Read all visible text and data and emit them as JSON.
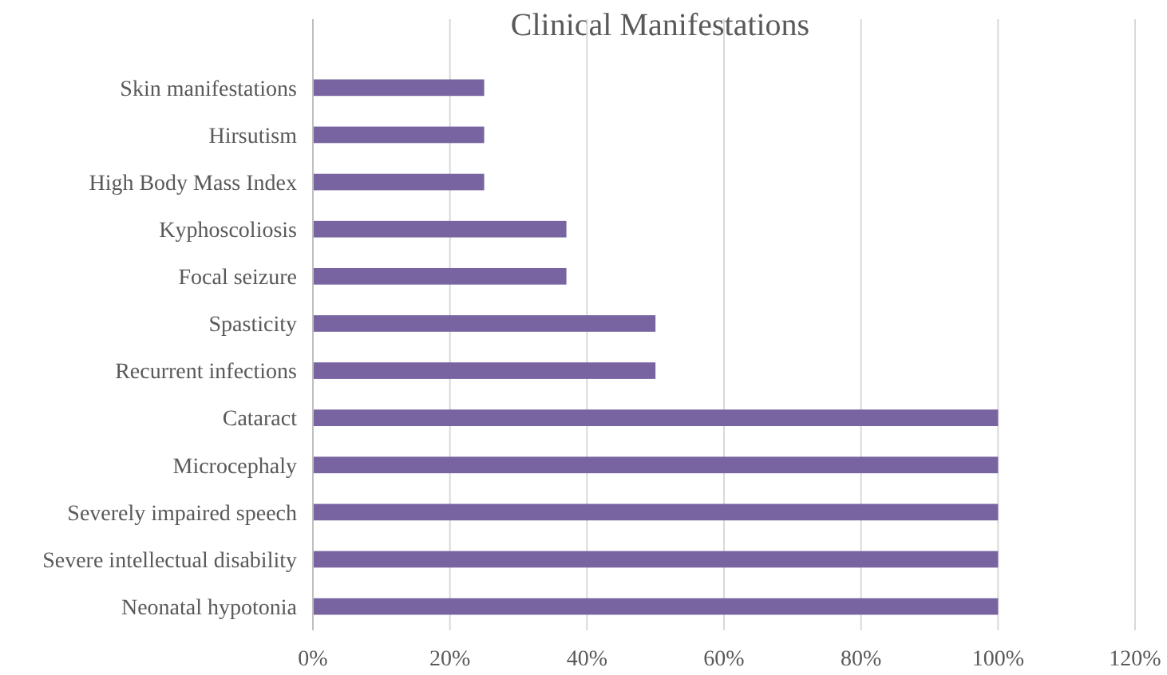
{
  "chart_data": {
    "type": "bar",
    "orientation": "horizontal",
    "title": "Clinical Manifestations",
    "categories": [
      "Skin manifestations",
      "Hirsutism",
      "High Body Mass Index",
      "Kyphoscoliosis",
      "Focal seizure",
      "Spasticity",
      "Recurrent infections",
      "Cataract",
      "Microcephaly",
      "Severely impaired speech",
      "Severe intellectual disability",
      "Neonatal hypotonia"
    ],
    "values": [
      25,
      25,
      25,
      37,
      37,
      50,
      50,
      100,
      100,
      100,
      100,
      100
    ],
    "color": "#7764a0",
    "xlim": [
      0,
      120
    ],
    "xticks": [
      {
        "value": 0,
        "label": "0%"
      },
      {
        "value": 20,
        "label": "20%"
      },
      {
        "value": 40,
        "label": "40%"
      },
      {
        "value": 60,
        "label": "60%"
      },
      {
        "value": 80,
        "label": "80%"
      },
      {
        "value": 100,
        "label": "100%"
      },
      {
        "value": 120,
        "label": "120%"
      }
    ],
    "grid": "x"
  }
}
